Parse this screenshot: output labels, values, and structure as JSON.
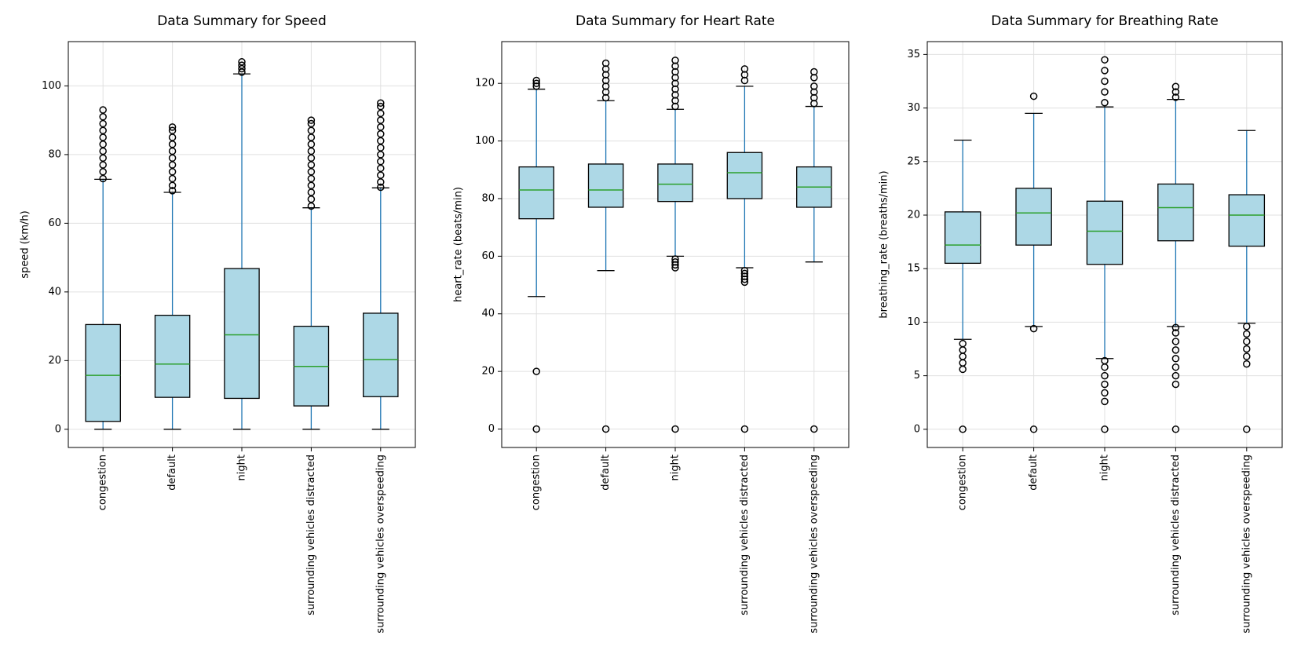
{
  "chart_data": [
    {
      "type": "box",
      "title": "Data Summary for Speed",
      "ylabel": "speed (km/h)",
      "categories": [
        "congestion",
        "default",
        "night",
        "surrounding vehicles distracted",
        "surrounding vehicles overspeeding"
      ],
      "boxes": [
        {
          "whislo": 0,
          "q1": 2.3,
          "median": 15.7,
          "q3": 30.5,
          "whishi": 72.8,
          "outliers": [
            73,
            75,
            77,
            79,
            81,
            83,
            85,
            87,
            89,
            91,
            93
          ]
        },
        {
          "whislo": 0,
          "q1": 9.3,
          "median": 19,
          "q3": 33.2,
          "whishi": 69,
          "outliers": [
            69.5,
            71,
            73,
            75,
            77,
            79,
            81,
            83,
            85,
            87,
            88
          ]
        },
        {
          "whislo": 0,
          "q1": 9,
          "median": 27.5,
          "q3": 46.8,
          "whishi": 103.5,
          "outliers": [
            104,
            105,
            106,
            107
          ]
        },
        {
          "whislo": 0,
          "q1": 6.8,
          "median": 18.3,
          "q3": 30,
          "whishi": 64.5,
          "outliers": [
            65,
            67,
            69,
            71,
            73,
            75,
            77,
            79,
            81,
            83,
            85,
            87,
            89,
            90
          ]
        },
        {
          "whislo": 0,
          "q1": 9.5,
          "median": 20.3,
          "q3": 33.8,
          "whishi": 70.3,
          "outliers": [
            70.5,
            72,
            74,
            76,
            78,
            80,
            82,
            84,
            86,
            88,
            90,
            92,
            94,
            95
          ]
        }
      ],
      "ylim": [
        -5.3,
        112.9
      ],
      "yticks": [
        0,
        20,
        40,
        60,
        80,
        100
      ],
      "grid": true,
      "box_color": "#add8e6",
      "median_color": "#2ca02c",
      "whisker_color": "#1f77b4"
    },
    {
      "type": "box",
      "title": "Data Summary for Heart Rate",
      "ylabel": "heart_rate (beats/min)",
      "categories": [
        "congestion",
        "default",
        "night",
        "surrounding vehicles distracted",
        "surrounding vehicles overspeeding"
      ],
      "boxes": [
        {
          "whislo": 46,
          "q1": 73,
          "median": 83,
          "q3": 91,
          "whishi": 118,
          "outliers": [
            0,
            20,
            119,
            120,
            121
          ]
        },
        {
          "whislo": 55,
          "q1": 77,
          "median": 83,
          "q3": 92,
          "whishi": 114,
          "outliers": [
            0,
            115,
            117,
            119,
            121,
            123,
            125,
            127
          ]
        },
        {
          "whislo": 60,
          "q1": 79,
          "median": 85,
          "q3": 92,
          "whishi": 111,
          "outliers": [
            0,
            56,
            57,
            58,
            59,
            112,
            114,
            116,
            118,
            120,
            122,
            124,
            126,
            128
          ]
        },
        {
          "whislo": 56,
          "q1": 80,
          "median": 89,
          "q3": 96,
          "whishi": 119,
          "outliers": [
            0,
            51,
            52,
            53,
            54,
            55,
            121,
            123,
            125
          ]
        },
        {
          "whislo": 58,
          "q1": 77,
          "median": 84,
          "q3": 91,
          "whishi": 112,
          "outliers": [
            0,
            113,
            115,
            117,
            119,
            122,
            124
          ]
        }
      ],
      "ylim": [
        -6.4,
        134.5
      ],
      "yticks": [
        0,
        20,
        40,
        60,
        80,
        100,
        120
      ],
      "grid": true,
      "box_color": "#add8e6",
      "median_color": "#2ca02c",
      "whisker_color": "#1f77b4"
    },
    {
      "type": "box",
      "title": "Data Summary for Breathing Rate",
      "ylabel": "breathing_rate (breaths/min)",
      "categories": [
        "congestion",
        "default",
        "night",
        "surrounding vehicles distracted",
        "surrounding vehicles overspeeding"
      ],
      "boxes": [
        {
          "whislo": 8.4,
          "q1": 15.5,
          "median": 17.2,
          "q3": 20.3,
          "whishi": 27,
          "outliers": [
            0,
            5.6,
            6.2,
            6.8,
            7.4,
            8
          ]
        },
        {
          "whislo": 9.6,
          "q1": 17.2,
          "median": 20.2,
          "q3": 22.5,
          "whishi": 29.5,
          "outliers": [
            0,
            9.4,
            31.1
          ]
        },
        {
          "whislo": 6.6,
          "q1": 15.4,
          "median": 18.5,
          "q3": 21.3,
          "whishi": 30.1,
          "outliers": [
            0,
            2.6,
            3.4,
            4.2,
            5,
            5.8,
            6.4,
            30.5,
            31.5,
            32.5,
            33.5,
            34.5
          ]
        },
        {
          "whislo": 9.6,
          "q1": 17.6,
          "median": 20.7,
          "q3": 22.9,
          "whishi": 30.8,
          "outliers": [
            0,
            4.2,
            5,
            5.8,
            6.6,
            7.4,
            8.2,
            9,
            9.5,
            31,
            31.5,
            32
          ]
        },
        {
          "whislo": 9.9,
          "q1": 17.1,
          "median": 20,
          "q3": 21.9,
          "whishi": 27.9,
          "outliers": [
            0,
            6.1,
            6.8,
            7.5,
            8.2,
            8.9,
            9.6
          ]
        }
      ],
      "ylim": [
        -1.7,
        36.2
      ],
      "yticks": [
        0,
        5,
        10,
        15,
        20,
        25,
        30,
        35
      ],
      "grid": true,
      "box_color": "#add8e6",
      "median_color": "#2ca02c",
      "whisker_color": "#1f77b4"
    }
  ]
}
